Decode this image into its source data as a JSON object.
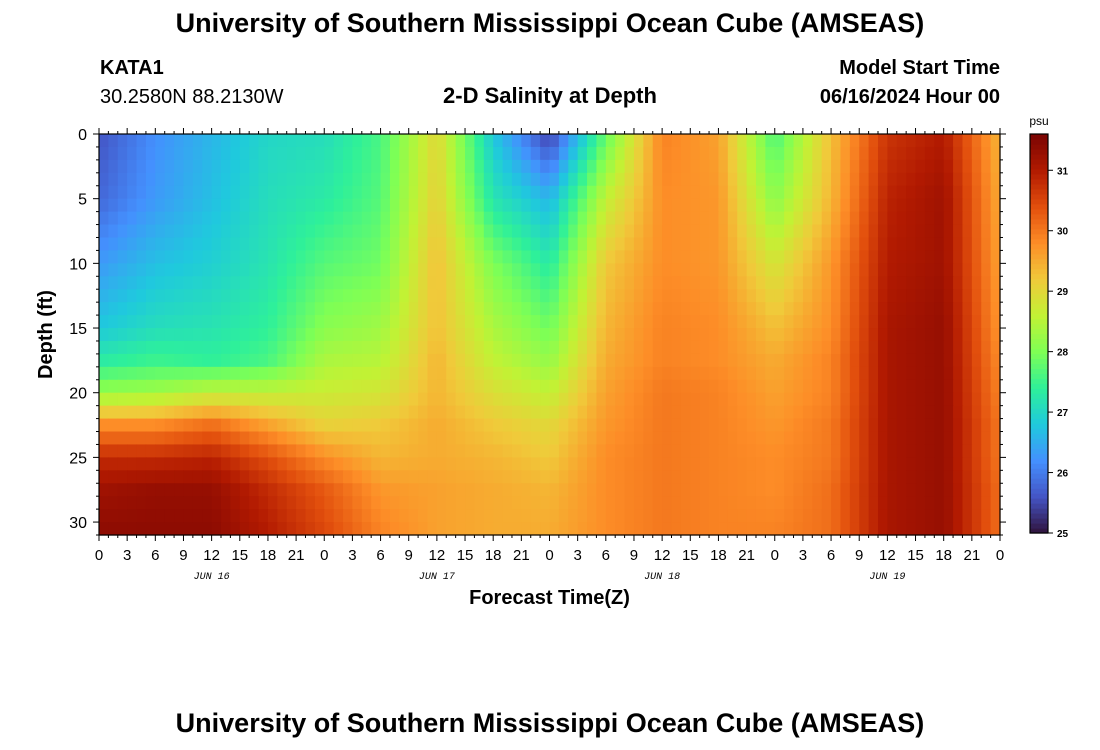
{
  "header": {
    "title": "University of Southern Mississippi Ocean Cube (AMSEAS)",
    "station": "KATA1",
    "coords": "30.2580N  88.2130W",
    "subtitle": "2-D Salinity at Depth",
    "start_label": "Model Start Time",
    "start_value": "06/16/2024 Hour 00"
  },
  "footer": {
    "title": "University of Southern Mississippi Ocean Cube (AMSEAS)"
  },
  "chart_data": {
    "type": "heatmap",
    "title": "2-D Salinity at Depth",
    "xlabel": "Forecast Time(Z)",
    "ylabel": "Depth (ft)",
    "xlim": [
      0,
      96
    ],
    "ylim": [
      31,
      0
    ],
    "x_tick_labels": [
      "0",
      "3",
      "6",
      "9",
      "12",
      "15",
      "18",
      "21",
      "0",
      "3",
      "6",
      "9",
      "12",
      "15",
      "18",
      "21",
      "0",
      "3",
      "6",
      "9",
      "12",
      "15",
      "18",
      "21",
      "0",
      "3",
      "6",
      "9",
      "12",
      "15",
      "18",
      "21",
      "0"
    ],
    "day_labels": [
      {
        "label": "JUN 16",
        "hour": 12
      },
      {
        "label": "JUN 17",
        "hour": 36
      },
      {
        "label": "JUN 18",
        "hour": 60
      },
      {
        "label": "JUN 19",
        "hour": 84
      }
    ],
    "y_ticks": [
      0,
      5,
      10,
      15,
      20,
      25,
      30
    ],
    "colorbar": {
      "units": "psu",
      "min": 25,
      "max": 31.6,
      "ticks": [
        25,
        26,
        27,
        28,
        29,
        30,
        31
      ]
    },
    "colormap": [
      "#30123b",
      "#4454c4",
      "#4490fe",
      "#1fc9dd",
      "#2ef09a",
      "#7eff55",
      "#c2f234",
      "#f0ca3a",
      "#fd8d27",
      "#e24f0d",
      "#b21a01",
      "#7a0403"
    ],
    "hours": [
      0,
      6,
      12,
      18,
      24,
      30,
      36,
      42,
      48,
      54,
      60,
      66,
      72,
      78,
      84,
      90,
      96
    ],
    "depths": [
      0,
      5,
      10,
      15,
      17.5,
      20,
      22.5,
      25,
      27.5,
      31
    ],
    "salinity": [
      [
        25.6,
        26.2,
        26.6,
        27.0,
        27.1,
        27.6,
        29.0,
        26.8,
        25.4,
        27.8,
        29.9,
        29.6,
        27.6,
        29.3,
        30.7,
        31.0,
        29.4
      ],
      [
        25.8,
        26.3,
        26.7,
        27.1,
        27.3,
        27.7,
        29.1,
        27.2,
        26.6,
        28.6,
        29.8,
        29.7,
        28.1,
        29.4,
        30.9,
        31.2,
        29.5
      ],
      [
        26.3,
        26.7,
        26.9,
        27.2,
        27.7,
        27.9,
        29.3,
        28.0,
        27.3,
        29.2,
        29.8,
        29.7,
        28.8,
        29.7,
        31.0,
        31.2,
        29.6
      ],
      [
        26.8,
        27.1,
        27.2,
        27.4,
        28.1,
        28.3,
        29.3,
        28.4,
        27.9,
        29.4,
        29.9,
        29.8,
        29.3,
        29.8,
        31.1,
        31.3,
        29.7
      ],
      [
        27.3,
        27.5,
        27.4,
        27.6,
        28.4,
        28.5,
        29.4,
        28.6,
        28.2,
        29.5,
        29.9,
        29.8,
        29.5,
        29.9,
        31.1,
        31.3,
        29.8
      ],
      [
        28.2,
        28.3,
        28.6,
        28.6,
        28.7,
        28.8,
        29.4,
        28.9,
        28.6,
        29.6,
        30.0,
        29.9,
        29.6,
        29.9,
        31.1,
        31.3,
        29.9
      ],
      [
        29.8,
        29.8,
        30.1,
        29.6,
        29.1,
        29.2,
        29.5,
        29.2,
        29.0,
        29.7,
        30.0,
        29.9,
        29.7,
        30.0,
        31.1,
        31.3,
        30.0
      ],
      [
        30.8,
        30.8,
        30.9,
        30.4,
        29.8,
        29.4,
        29.5,
        29.4,
        29.2,
        29.8,
        30.0,
        29.9,
        29.8,
        30.0,
        31.1,
        31.3,
        30.0
      ],
      [
        31.2,
        31.3,
        31.3,
        30.8,
        30.3,
        29.7,
        29.6,
        29.5,
        29.4,
        29.8,
        30.0,
        29.9,
        29.8,
        30.1,
        31.1,
        31.3,
        30.1
      ],
      [
        31.4,
        31.4,
        31.4,
        31.0,
        30.5,
        29.9,
        29.6,
        29.5,
        29.5,
        29.8,
        30.0,
        29.9,
        29.9,
        30.1,
        31.1,
        31.3,
        30.1
      ]
    ]
  }
}
